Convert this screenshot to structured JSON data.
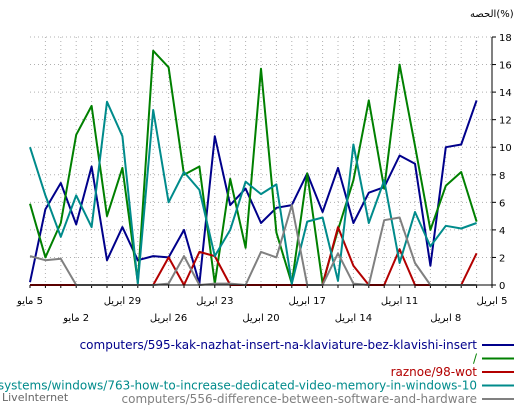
{
  "chart_data": {
    "type": "line",
    "ylabel": "الحصه(%)",
    "ylim": [
      0,
      18
    ],
    "yticks": [
      0,
      2,
      4,
      6,
      8,
      10,
      12,
      14,
      16,
      18
    ],
    "grid": true,
    "x": [
      "5 مايو",
      "4",
      "3",
      "2 مايو",
      "1",
      "30",
      "29 ابريل",
      "28",
      "27",
      "26 ابريل",
      "25",
      "24",
      "23 ابريل",
      "22",
      "21",
      "20 ابريل",
      "19",
      "18",
      "17 ابريل",
      "16",
      "15",
      "14 ابريل",
      "13",
      "12",
      "11 ابريل",
      "10",
      "9",
      "8 ابريل",
      "7",
      "6",
      "5 ابريل"
    ],
    "xtick_labels_row1": [
      {
        "index": 0,
        "label": "5 مايو"
      },
      {
        "index": 6,
        "label": "29 ابريل"
      },
      {
        "index": 12,
        "label": "23 ابريل"
      },
      {
        "index": 18,
        "label": "17 ابريل"
      },
      {
        "index": 24,
        "label": "11 ابريل"
      },
      {
        "index": 30,
        "label": "5 ابريل"
      }
    ],
    "xtick_labels_row2": [
      {
        "index": 3,
        "label": "2 مايو"
      },
      {
        "index": 9,
        "label": "26 ابريل"
      },
      {
        "index": 15,
        "label": "20 ابريل"
      },
      {
        "index": 21,
        "label": "14 ابريل"
      },
      {
        "index": 27,
        "label": "8 ابريل"
      }
    ],
    "series": [
      {
        "name": "computers/595-kak-nazhat-insert-na-klaviature-bez-klavishi-insert",
        "color": "#00008b",
        "values": [
          0.2,
          5.5,
          7.4,
          4.4,
          8.6,
          1.8,
          4.2,
          1.8,
          2.1,
          2.0,
          4.0,
          0.1,
          10.8,
          5.8,
          7.0,
          4.5,
          5.6,
          5.8,
          8.1,
          5.3,
          8.5,
          4.5,
          6.7,
          7.1,
          9.4,
          8.8,
          1.4,
          10.0,
          10.2,
          13.4,
          null
        ]
      },
      {
        "name": "/",
        "color": "#008000",
        "values": [
          5.9,
          2.0,
          4.5,
          10.9,
          13.0,
          5.0,
          8.5,
          0.2,
          17.0,
          15.8,
          8.0,
          8.6,
          0.1,
          7.7,
          2.7,
          15.7,
          3.8,
          0.1,
          8.1,
          0.1,
          4.0,
          7.6,
          13.4,
          7.0,
          16.0,
          10.1,
          4.0,
          7.2,
          8.2,
          4.6,
          null
        ]
      },
      {
        "name": "raznoe/98-wot",
        "color": "#b30000",
        "values": [
          0.0,
          0.0,
          0.0,
          0.0,
          0.0,
          0.0,
          0.0,
          0.0,
          0.0,
          2.0,
          0.0,
          2.4,
          2.1,
          0.0,
          0.0,
          0.0,
          0.0,
          0.0,
          0.0,
          0.0,
          4.2,
          1.4,
          0.0,
          0.0,
          2.6,
          0.0,
          0.0,
          0.0,
          0.0,
          2.3,
          null
        ]
      },
      {
        "name": "-systems/windows/763-how-to-increase-dedicated-video-memory-in-windows-10",
        "color": "#008b8b",
        "values": [
          10.0,
          6.5,
          3.5,
          6.5,
          4.2,
          13.3,
          10.8,
          0.1,
          12.7,
          6.0,
          8.2,
          6.9,
          2.1,
          4.0,
          7.5,
          6.6,
          7.3,
          0.1,
          4.6,
          4.9,
          0.3,
          10.2,
          4.5,
          7.6,
          1.6,
          5.3,
          2.8,
          4.3,
          4.1,
          4.5,
          null
        ]
      },
      {
        "name": "computers/556-difference-between-software-and-hardware",
        "color": "#808080",
        "values": [
          2.1,
          1.8,
          1.9,
          0.0,
          0.0,
          0.0,
          0.0,
          0.0,
          0.0,
          0.1,
          2.1,
          0.0,
          0.1,
          0.1,
          0.0,
          2.4,
          2.0,
          5.8,
          0.0,
          0.0,
          2.3,
          0.1,
          0.0,
          4.7,
          4.9,
          1.6,
          0.0,
          0.0,
          0.0,
          0.0,
          null
        ]
      }
    ],
    "legend_position": "bottom"
  },
  "credit": "LiveInternet"
}
